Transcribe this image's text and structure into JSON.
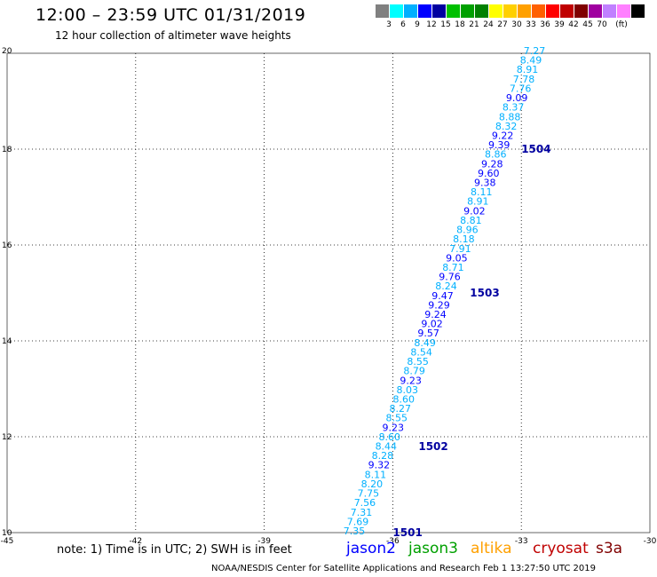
{
  "header": {
    "title": "12:00 – 23:59 UTC 01/31/2019",
    "subtitle": "12 hour collection of altimeter wave heights"
  },
  "scale": {
    "colors": [
      "#808080",
      "#00ffff",
      "#00b0ff",
      "#0000ff",
      "#0000a0",
      "#00c000",
      "#00a000",
      "#008000",
      "#ffff00",
      "#ffd000",
      "#ffa000",
      "#ff6000",
      "#ff0000",
      "#c00000",
      "#800000",
      "#a000a0",
      "#c080ff",
      "#ff80ff",
      "#000000"
    ],
    "labels": [
      "3",
      "6",
      "9",
      "12",
      "15",
      "18",
      "21",
      "24",
      "27",
      "30",
      "33",
      "36",
      "39",
      "42",
      "45",
      "70",
      "(ft)"
    ]
  },
  "map": {
    "x_ticks": [
      "-45",
      "-42",
      "-39",
      "-36",
      "-33",
      "-30"
    ],
    "y_ticks": [
      "10",
      "12",
      "14",
      "16",
      "18",
      "20"
    ],
    "lon_range": [
      -45,
      -30
    ],
    "lat_range": [
      10,
      20
    ],
    "passes": [
      {
        "label": "1501",
        "lon": -36.0,
        "lat": 10.0
      },
      {
        "label": "1502",
        "lon": -35.4,
        "lat": 11.8
      },
      {
        "label": "1503",
        "lon": -34.2,
        "lat": 15.0
      },
      {
        "label": "1504",
        "lon": -33.0,
        "lat": 18.0
      }
    ],
    "swh": [
      {
        "v": "7.35",
        "c": "#00b0ff"
      },
      {
        "v": "7.69",
        "c": "#00b0ff"
      },
      {
        "v": "7.31",
        "c": "#00b0ff"
      },
      {
        "v": "7.56",
        "c": "#00b0ff"
      },
      {
        "v": "7.75",
        "c": "#00b0ff"
      },
      {
        "v": "8.20",
        "c": "#00b0ff"
      },
      {
        "v": "8.11",
        "c": "#00b0ff"
      },
      {
        "v": "9.32",
        "c": "#0000ff"
      },
      {
        "v": "8.28",
        "c": "#00b0ff"
      },
      {
        "v": "8.44",
        "c": "#00b0ff"
      },
      {
        "v": "8.60",
        "c": "#00b0ff"
      },
      {
        "v": "9.23",
        "c": "#0000ff"
      },
      {
        "v": "8.55",
        "c": "#00b0ff"
      },
      {
        "v": "8.27",
        "c": "#00b0ff"
      },
      {
        "v": "8.60",
        "c": "#00b0ff"
      },
      {
        "v": "8.03",
        "c": "#00b0ff"
      },
      {
        "v": "9.23",
        "c": "#0000ff"
      },
      {
        "v": "8.79",
        "c": "#00b0ff"
      },
      {
        "v": "8.55",
        "c": "#00b0ff"
      },
      {
        "v": "8.54",
        "c": "#00b0ff"
      },
      {
        "v": "8.49",
        "c": "#00b0ff"
      },
      {
        "v": "9.57",
        "c": "#0000ff"
      },
      {
        "v": "9.02",
        "c": "#0000ff"
      },
      {
        "v": "9.24",
        "c": "#0000ff"
      },
      {
        "v": "9.29",
        "c": "#0000ff"
      },
      {
        "v": "9.47",
        "c": "#0000ff"
      },
      {
        "v": "8.24",
        "c": "#00b0ff"
      },
      {
        "v": "9.76",
        "c": "#0000ff"
      },
      {
        "v": "8.71",
        "c": "#00b0ff"
      },
      {
        "v": "9.05",
        "c": "#0000ff"
      },
      {
        "v": "7.91",
        "c": "#00b0ff"
      },
      {
        "v": "8.18",
        "c": "#00b0ff"
      },
      {
        "v": "8.96",
        "c": "#00b0ff"
      },
      {
        "v": "8.81",
        "c": "#00b0ff"
      },
      {
        "v": "9.02",
        "c": "#0000ff"
      },
      {
        "v": "8.91",
        "c": "#00b0ff"
      },
      {
        "v": "8.11",
        "c": "#00b0ff"
      },
      {
        "v": "9.38",
        "c": "#0000ff"
      },
      {
        "v": "9.60",
        "c": "#0000ff"
      },
      {
        "v": "9.28",
        "c": "#0000ff"
      },
      {
        "v": "8.86",
        "c": "#00b0ff"
      },
      {
        "v": "9.39",
        "c": "#0000ff"
      },
      {
        "v": "9.22",
        "c": "#0000ff"
      },
      {
        "v": "8.32",
        "c": "#00b0ff"
      },
      {
        "v": "8.88",
        "c": "#00b0ff"
      },
      {
        "v": "8.37",
        "c": "#00b0ff"
      },
      {
        "v": "9.09",
        "c": "#0000ff"
      },
      {
        "v": "7.76",
        "c": "#00b0ff"
      },
      {
        "v": "7.78",
        "c": "#00b0ff"
      },
      {
        "v": "8.91",
        "c": "#00b0ff"
      },
      {
        "v": "8.49",
        "c": "#00b0ff"
      },
      {
        "v": "7.27",
        "c": "#00b0ff"
      }
    ]
  },
  "note": "note: 1) Time is in UTC; 2) SWH is in feet",
  "satellites": [
    {
      "name": "jason2",
      "color": "#0000ff"
    },
    {
      "name": "jason3",
      "color": "#00a000"
    },
    {
      "name": "altika",
      "color": "#ffa000"
    },
    {
      "name": "cryosat",
      "color": "#c00000"
    },
    {
      "name": "s3a",
      "color": "#800000"
    }
  ],
  "footer": "NOAA/NESDIS Center for Satellite Applications and Research    Feb  1 13:27:50 UTC 2019"
}
